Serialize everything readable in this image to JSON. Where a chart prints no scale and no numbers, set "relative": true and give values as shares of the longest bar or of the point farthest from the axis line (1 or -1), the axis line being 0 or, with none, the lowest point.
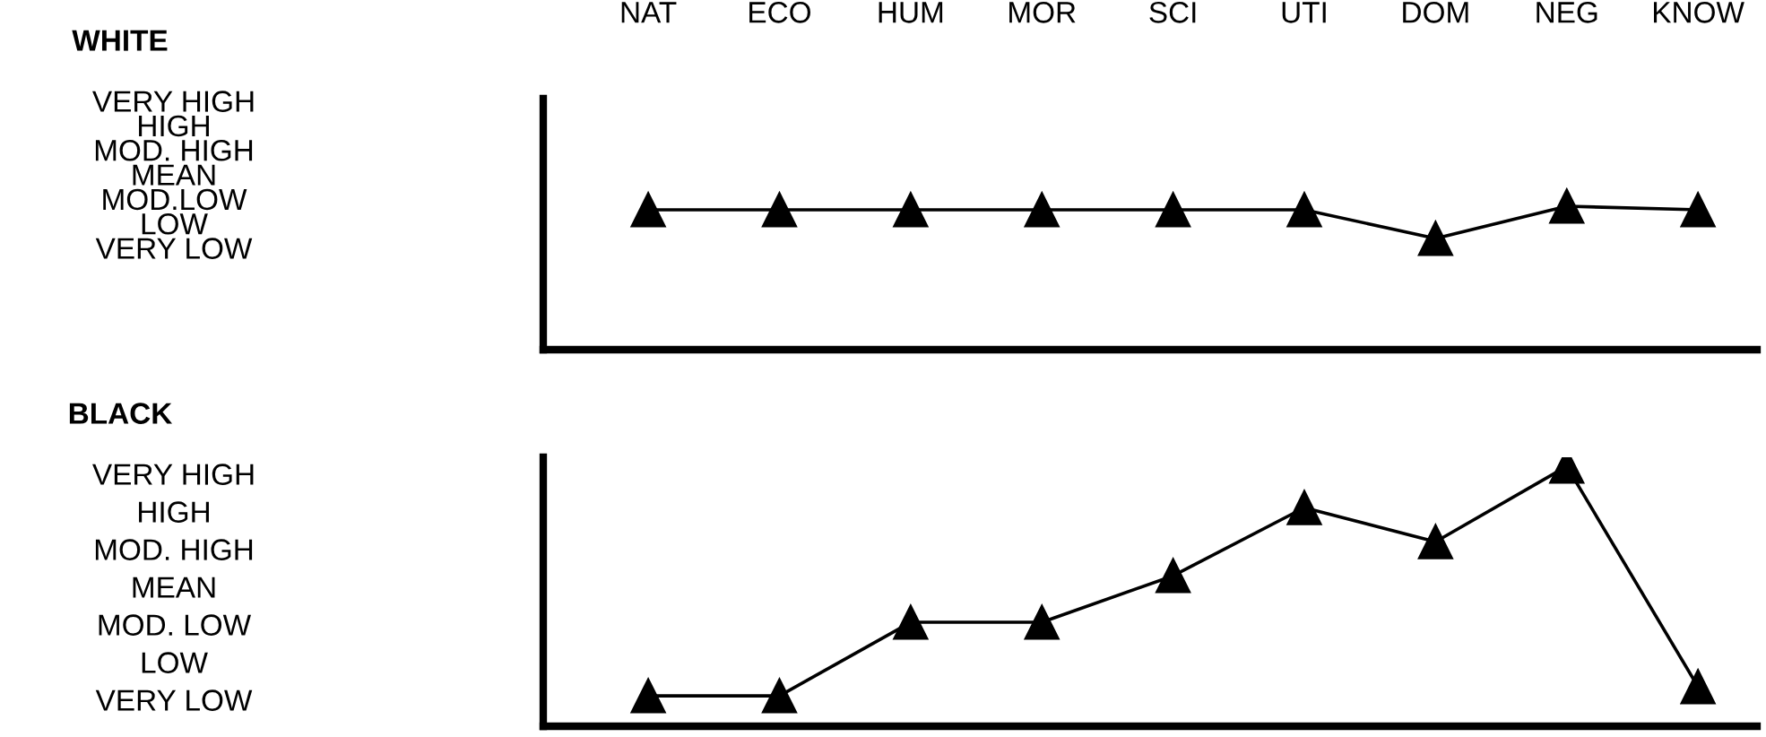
{
  "chart_data": [
    {
      "type": "line",
      "ylabel": "WHITE",
      "categories": [
        "NAT",
        "ECO",
        "HUM",
        "MOR",
        "SCI",
        "UTI",
        "DOM",
        "NEG",
        "KNOW"
      ],
      "series": [
        {
          "color": "#000000",
          "values": [
            0.975,
            0.975,
            0.975,
            0.975,
            0.975,
            0.975,
            0.775,
            1,
            0.975
          ]
        }
      ],
      "relative": true,
      "tick_labels": "x",
      "annotations": [
        "VERY HIGH",
        "HIGH",
        "MOD. HIGH",
        "MEAN",
        "MOD.LOW",
        "LOW",
        "VERY LOW"
      ],
      "marker": "triangle",
      "line_style": "solid"
    },
    {
      "type": "line",
      "ylabel": "BLACK",
      "categories": [
        null,
        null,
        null,
        null,
        null,
        null,
        null,
        null,
        null
      ],
      "series": [
        {
          "color": "#000000",
          "values": [
            0.117,
            0.117,
            0.4,
            0.4,
            0.579,
            0.841,
            0.71,
            1,
            0.152
          ]
        }
      ],
      "relative": true,
      "tick_labels": false,
      "annotations": [
        "VERY HIGH",
        "HIGH",
        "MOD. HIGH",
        "MEAN",
        "MOD. LOW",
        "LOW",
        "VERY LOW"
      ],
      "marker": "triangle",
      "line_style": "solid"
    }
  ]
}
